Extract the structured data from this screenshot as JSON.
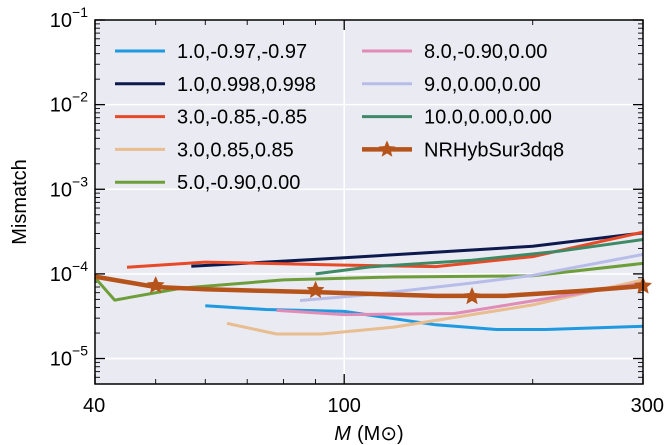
{
  "chart_data": {
    "type": "line",
    "xlabel_main": "M",
    "xlabel_unit": "(M⊙)",
    "ylabel": "Mismatch",
    "x_scale": "log",
    "y_scale": "log",
    "xlim": [
      40,
      300
    ],
    "ylim": [
      5e-06,
      0.1
    ],
    "x_ticks": [
      {
        "value": 40,
        "label": "40"
      },
      {
        "value": 100,
        "label": "100"
      },
      {
        "value": 300,
        "label": "300"
      }
    ],
    "y_ticks": [
      {
        "value": 1e-05,
        "base": "10",
        "exp": "−5"
      },
      {
        "value": 0.0001,
        "base": "10",
        "exp": "−4"
      },
      {
        "value": 0.001,
        "base": "10",
        "exp": "−3"
      },
      {
        "value": 0.01,
        "base": "10",
        "exp": "−2"
      },
      {
        "value": 0.1,
        "base": "10",
        "exp": "−1"
      }
    ],
    "grid": true,
    "background": "#eaeaf2",
    "legend_position": "top",
    "series": [
      {
        "name": "1.0,-0.97,-0.97",
        "color": "#1f9ae0",
        "x": [
          60,
          75,
          100,
          140,
          175,
          210,
          300
        ],
        "y": [
          4.2e-05,
          3.8e-05,
          3.6e-05,
          2.5e-05,
          2.2e-05,
          2.2e-05,
          2.4e-05
        ]
      },
      {
        "name": "1.0,0.998,0.998",
        "color": "#0d1a4d",
        "x": [
          57,
          100,
          200,
          300
        ],
        "y": [
          0.000123,
          0.000155,
          0.000212,
          0.000305
        ]
      },
      {
        "name": "3.0,-0.85,-0.85",
        "color": "#e84a27",
        "x": [
          45,
          60,
          100,
          140,
          200,
          300
        ],
        "y": [
          0.00012,
          0.000138,
          0.000127,
          0.000122,
          0.00016,
          0.000312
        ]
      },
      {
        "name": "3.0,0.85,0.85",
        "color": "#e8bd8f",
        "x": [
          65,
          78,
          92,
          120,
          200,
          300
        ],
        "y": [
          2.6e-05,
          1.95e-05,
          1.95e-05,
          2.35e-05,
          4.3e-05,
          8.5e-05
        ]
      },
      {
        "name": "5.0,-0.90,0.00",
        "color": "#6e9e3a",
        "x": [
          40,
          43,
          55,
          80,
          120,
          200,
          300
        ],
        "y": [
          9e-05,
          4.9e-05,
          6.8e-05,
          8.5e-05,
          9.2e-05,
          9.5e-05,
          0.000133
        ]
      },
      {
        "name": "8.0,-0.90,0.00",
        "color": "#e08cb7",
        "x": [
          78,
          100,
          150,
          200,
          300
        ],
        "y": [
          3.7e-05,
          3.3e-05,
          3.4e-05,
          4.8e-05,
          7.8e-05
        ]
      },
      {
        "name": "9.0,0.00,0.00",
        "color": "#b7bde8",
        "x": [
          85,
          110,
          160,
          200,
          300
        ],
        "y": [
          4.85e-05,
          5.7e-05,
          7.8e-05,
          9.6e-05,
          0.00017
        ]
      },
      {
        "name": "10.0,0.00,0.00",
        "color": "#3f8a66",
        "x": [
          90,
          110,
          160,
          220,
          300
        ],
        "y": [
          0.0001,
          0.000121,
          0.000145,
          0.000185,
          0.000255
        ]
      },
      {
        "name": "NRHybSur3dq8",
        "color": "#b5531a",
        "x": [
          40,
          45,
          50,
          60,
          75,
          90,
          110,
          140,
          180,
          240,
          300
        ],
        "y": [
          9.3e-05,
          8e-05,
          7e-05,
          6.6e-05,
          6.3e-05,
          6.1e-05,
          5.8e-05,
          5.5e-05,
          5.5e-05,
          6.3e-05,
          7.2e-05
        ],
        "markers_x": [
          50,
          90,
          160,
          300
        ],
        "markers_y": [
          7.3e-05,
          6.4e-05,
          5.4e-05,
          7.2e-05
        ],
        "marker": "star",
        "thick": true
      }
    ]
  }
}
